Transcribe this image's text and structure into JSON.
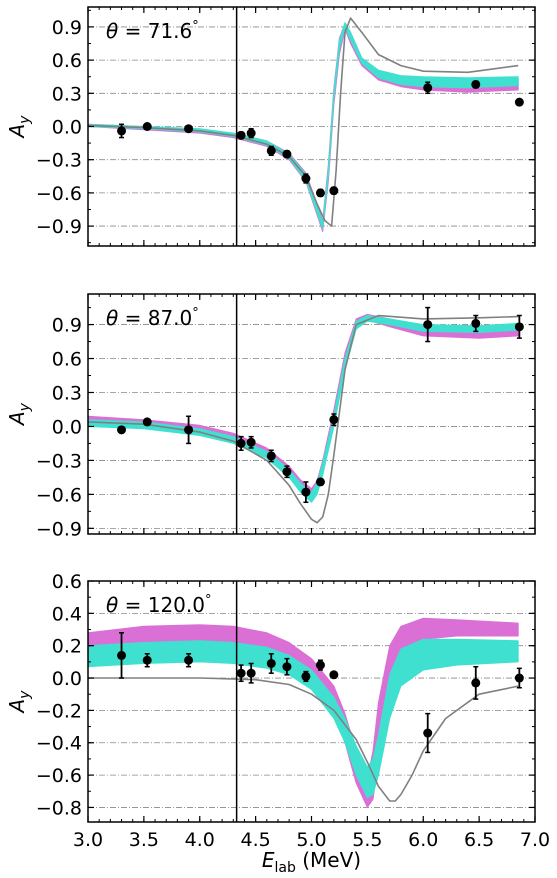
{
  "chart_data": [
    {
      "type": "line",
      "annotation": "θ = 71.6°",
      "xlabel": "",
      "ylabel": "A_y",
      "xlim": [
        3.0,
        7.0
      ],
      "ylim": [
        -1.08,
        1.08
      ],
      "yticks": [
        -0.9,
        -0.6,
        -0.3,
        0.0,
        0.3,
        0.6,
        0.9
      ],
      "ytick_labels": [
        "−0.9",
        "−0.6",
        "−0.3",
        "0.0",
        "0.3",
        "0.6",
        "0.9"
      ],
      "xticks": [
        3.0,
        3.5,
        4.0,
        4.5,
        5.0,
        5.5,
        6.0,
        6.5,
        7.0
      ],
      "xtick_labels": [],
      "grid": "horizontal dash-dot",
      "vline_x": 4.33,
      "series": [
        {
          "style": "band",
          "color": "#da70d6",
          "x": [
            3.0,
            3.5,
            4.0,
            4.3,
            4.6,
            4.8,
            4.95,
            5.05,
            5.1,
            5.15,
            5.2,
            5.25,
            5.3,
            5.35,
            5.45,
            5.6,
            5.8,
            6.0,
            6.4,
            6.85
          ],
          "lower": [
            0.0,
            -0.03,
            -0.06,
            -0.1,
            -0.18,
            -0.3,
            -0.5,
            -0.8,
            -0.95,
            -0.5,
            0.2,
            0.65,
            0.88,
            0.75,
            0.55,
            0.42,
            0.36,
            0.33,
            0.31,
            0.33
          ],
          "upper": [
            0.02,
            0.0,
            -0.03,
            -0.06,
            -0.13,
            -0.24,
            -0.42,
            -0.7,
            -0.85,
            -0.35,
            0.35,
            0.8,
            0.93,
            0.85,
            0.62,
            0.5,
            0.44,
            0.42,
            0.41,
            0.43
          ]
        },
        {
          "style": "band",
          "color": "#40e0d0",
          "x": [
            3.0,
            3.5,
            4.0,
            4.3,
            4.6,
            4.8,
            4.95,
            5.05,
            5.1,
            5.15,
            5.2,
            5.25,
            5.3,
            5.35,
            5.45,
            5.6,
            5.8,
            6.0,
            6.4,
            6.85
          ],
          "lower": [
            0.0,
            -0.02,
            -0.05,
            -0.09,
            -0.17,
            -0.29,
            -0.49,
            -0.78,
            -0.93,
            -0.45,
            0.25,
            0.7,
            0.9,
            0.78,
            0.57,
            0.44,
            0.38,
            0.36,
            0.35,
            0.37
          ],
          "upper": [
            0.02,
            0.0,
            -0.02,
            -0.06,
            -0.13,
            -0.25,
            -0.43,
            -0.72,
            -0.87,
            -0.38,
            0.32,
            0.78,
            0.94,
            0.85,
            0.62,
            0.51,
            0.46,
            0.45,
            0.44,
            0.45
          ]
        },
        {
          "style": "line",
          "color": "#808080",
          "x": [
            3.0,
            3.5,
            4.0,
            4.3,
            4.6,
            4.8,
            4.95,
            5.05,
            5.12,
            5.18,
            5.22,
            5.26,
            5.3,
            5.35,
            5.45,
            5.6,
            5.8,
            6.0,
            6.4,
            6.85
          ],
          "y": [
            0.01,
            -0.01,
            -0.04,
            -0.08,
            -0.16,
            -0.27,
            -0.45,
            -0.7,
            -0.85,
            -0.9,
            -0.4,
            0.3,
            0.85,
            0.98,
            0.85,
            0.65,
            0.55,
            0.5,
            0.49,
            0.55
          ]
        }
      ],
      "points": {
        "x": [
          3.3,
          3.53,
          3.9,
          4.37,
          4.46,
          4.64,
          4.78,
          4.95,
          5.08,
          5.2,
          6.04,
          6.47,
          6.86
        ],
        "y": [
          -0.04,
          0.0,
          -0.02,
          -0.08,
          -0.06,
          -0.22,
          -0.25,
          -0.47,
          -0.6,
          -0.58,
          0.35,
          0.38,
          0.22
        ],
        "err": [
          0.06,
          0.02,
          0.02,
          0.03,
          0.04,
          0.04,
          0.03,
          0.04,
          0.03,
          0.03,
          0.05,
          0.03,
          0.02
        ]
      }
    },
    {
      "type": "line",
      "annotation": "θ = 87.0°",
      "xlabel": "",
      "ylabel": "A_y",
      "xlim": [
        3.0,
        7.0
      ],
      "ylim": [
        -0.95,
        1.17
      ],
      "yticks": [
        -0.9,
        -0.6,
        -0.3,
        0.0,
        0.3,
        0.6,
        0.9
      ],
      "ytick_labels": [
        "−0.9",
        "−0.6",
        "−0.3",
        "0.0",
        "0.3",
        "0.6",
        "0.9"
      ],
      "xticks": [
        3.0,
        3.5,
        4.0,
        4.5,
        5.0,
        5.5,
        6.0,
        6.5,
        7.0
      ],
      "xtick_labels": [],
      "grid": "horizontal dash-dot",
      "vline_x": 4.33,
      "series": [
        {
          "style": "band",
          "color": "#da70d6",
          "x": [
            3.0,
            3.5,
            4.0,
            4.3,
            4.6,
            4.8,
            4.9,
            5.0,
            5.05,
            5.1,
            5.2,
            5.3,
            5.4,
            5.5,
            5.7,
            6.0,
            6.5,
            6.85
          ],
          "lower": [
            0.03,
            0.0,
            -0.06,
            -0.13,
            -0.26,
            -0.42,
            -0.55,
            -0.62,
            -0.55,
            -0.4,
            0.05,
            0.55,
            0.88,
            0.94,
            0.88,
            0.8,
            0.78,
            0.8
          ],
          "upper": [
            0.09,
            0.06,
            0.01,
            -0.06,
            -0.19,
            -0.35,
            -0.47,
            -0.55,
            -0.48,
            -0.3,
            0.15,
            0.65,
            0.95,
            0.99,
            0.95,
            0.88,
            0.87,
            0.89
          ]
        },
        {
          "style": "band",
          "color": "#40e0d0",
          "x": [
            3.0,
            3.5,
            4.0,
            4.3,
            4.6,
            4.8,
            4.9,
            5.0,
            5.05,
            5.1,
            5.2,
            5.3,
            5.4,
            5.5,
            5.7,
            6.0,
            6.5,
            6.85
          ],
          "lower": [
            0.0,
            -0.02,
            -0.08,
            -0.15,
            -0.28,
            -0.45,
            -0.58,
            -0.67,
            -0.6,
            -0.43,
            0.0,
            0.5,
            0.86,
            0.93,
            0.9,
            0.84,
            0.83,
            0.85
          ],
          "upper": [
            0.06,
            0.04,
            -0.02,
            -0.09,
            -0.22,
            -0.38,
            -0.5,
            -0.58,
            -0.5,
            -0.32,
            0.1,
            0.6,
            0.93,
            0.98,
            0.95,
            0.9,
            0.89,
            0.91
          ]
        },
        {
          "style": "line",
          "color": "#808080",
          "x": [
            3.0,
            3.5,
            4.0,
            4.3,
            4.6,
            4.8,
            4.9,
            5.0,
            5.05,
            5.1,
            5.15,
            5.2,
            5.3,
            5.4,
            5.6,
            6.0,
            6.5,
            6.85
          ],
          "y": [
            0.04,
            0.02,
            -0.05,
            -0.13,
            -0.3,
            -0.52,
            -0.68,
            -0.82,
            -0.85,
            -0.8,
            -0.6,
            -0.25,
            0.5,
            0.9,
            0.98,
            0.95,
            0.96,
            0.97
          ]
        }
      ],
      "points": {
        "x": [
          3.3,
          3.53,
          3.9,
          4.37,
          4.46,
          4.64,
          4.78,
          4.95,
          5.08,
          5.2,
          6.04,
          6.47,
          6.86
        ],
        "y": [
          -0.03,
          0.04,
          -0.03,
          -0.15,
          -0.14,
          -0.26,
          -0.4,
          -0.58,
          -0.49,
          0.06,
          0.9,
          0.91,
          0.88
        ],
        "err": [
          0.02,
          0.02,
          0.12,
          0.06,
          0.05,
          0.05,
          0.05,
          0.09,
          0.02,
          0.05,
          0.15,
          0.07,
          0.1
        ]
      }
    },
    {
      "type": "line",
      "annotation": "θ = 120.0°",
      "xlabel": "E_lab (MeV)",
      "ylabel": "A_y",
      "xlim": [
        3.0,
        7.0
      ],
      "ylim": [
        -0.89,
        0.6
      ],
      "yticks": [
        -0.8,
        -0.6,
        -0.4,
        -0.2,
        0.0,
        0.2,
        0.4,
        0.6
      ],
      "ytick_labels": [
        "−0.8",
        "−0.6",
        "−0.4",
        "−0.2",
        "0.0",
        "0.2",
        "0.4",
        "0.6"
      ],
      "xticks": [
        3.0,
        3.5,
        4.0,
        4.5,
        5.0,
        5.5,
        6.0,
        6.5,
        7.0
      ],
      "xtick_labels": [
        "3.0",
        "3.5",
        "4.0",
        "4.5",
        "5.0",
        "5.5",
        "6.0",
        "6.5",
        "7.0"
      ],
      "grid": "horizontal dash-dot",
      "vline_x": 4.33,
      "series": [
        {
          "style": "band",
          "color": "#da70d6",
          "x": [
            3.0,
            3.5,
            4.0,
            4.3,
            4.6,
            4.8,
            5.0,
            5.2,
            5.3,
            5.4,
            5.5,
            5.55,
            5.6,
            5.7,
            5.8,
            6.0,
            6.3,
            6.85
          ],
          "lower": [
            0.15,
            0.19,
            0.2,
            0.19,
            0.15,
            0.1,
            0.0,
            -0.2,
            -0.4,
            -0.65,
            -0.8,
            -0.75,
            -0.5,
            -0.05,
            0.15,
            0.24,
            0.26,
            0.26
          ],
          "upper": [
            0.28,
            0.32,
            0.33,
            0.32,
            0.28,
            0.22,
            0.12,
            -0.05,
            -0.22,
            -0.45,
            -0.62,
            -0.45,
            -0.15,
            0.2,
            0.32,
            0.37,
            0.36,
            0.34
          ]
        },
        {
          "style": "band",
          "color": "#40e0d0",
          "x": [
            3.0,
            3.5,
            4.0,
            4.3,
            4.6,
            4.8,
            5.0,
            5.2,
            5.3,
            5.4,
            5.5,
            5.55,
            5.6,
            5.7,
            5.8,
            6.0,
            6.3,
            6.85
          ],
          "lower": [
            0.07,
            0.09,
            0.1,
            0.09,
            0.06,
            0.02,
            -0.07,
            -0.25,
            -0.4,
            -0.6,
            -0.74,
            -0.72,
            -0.6,
            -0.25,
            -0.05,
            0.05,
            0.08,
            0.1
          ],
          "upper": [
            0.2,
            0.22,
            0.23,
            0.22,
            0.19,
            0.14,
            0.05,
            -0.12,
            -0.25,
            -0.42,
            -0.55,
            -0.5,
            -0.35,
            0.02,
            0.18,
            0.24,
            0.24,
            0.23
          ]
        },
        {
          "style": "line",
          "color": "#808080",
          "x": [
            3.0,
            4.0,
            4.5,
            4.8,
            5.0,
            5.2,
            5.4,
            5.5,
            5.6,
            5.7,
            5.75,
            5.8,
            5.9,
            6.0,
            6.2,
            6.5,
            6.85
          ],
          "y": [
            0.0,
            0.0,
            -0.01,
            -0.04,
            -0.1,
            -0.2,
            -0.38,
            -0.52,
            -0.67,
            -0.76,
            -0.76,
            -0.72,
            -0.6,
            -0.45,
            -0.25,
            -0.1,
            -0.05
          ]
        }
      ],
      "points": {
        "x": [
          3.3,
          3.53,
          3.9,
          4.37,
          4.46,
          4.64,
          4.78,
          4.95,
          5.08,
          5.2,
          6.04,
          6.47,
          6.86
        ],
        "y": [
          0.14,
          0.11,
          0.11,
          0.03,
          0.03,
          0.09,
          0.07,
          0.01,
          0.08,
          0.02,
          -0.34,
          -0.03,
          0.0
        ],
        "err": [
          0.14,
          0.04,
          0.04,
          0.05,
          0.06,
          0.06,
          0.05,
          0.03,
          0.03,
          0.01,
          0.12,
          0.1,
          0.06
        ]
      }
    }
  ]
}
